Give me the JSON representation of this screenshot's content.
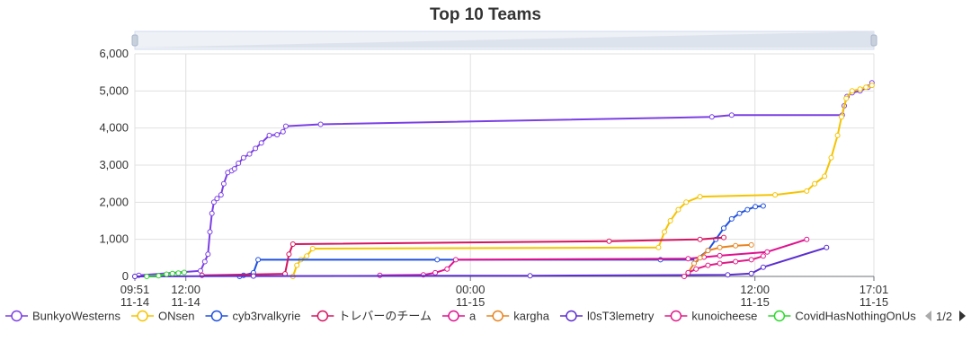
{
  "chart_data": {
    "type": "line",
    "title": "Top 10 Teams",
    "xlabel": "",
    "ylabel": "",
    "ylim": [
      0,
      6000
    ],
    "y_ticks": [
      0,
      1000,
      2000,
      3000,
      4000,
      5000,
      6000
    ],
    "y_tick_labels": [
      "0",
      "1,000",
      "2,000",
      "3,000",
      "4,000",
      "5,000",
      "6,000"
    ],
    "xlim": [
      0,
      1870
    ],
    "x_tick_labels": [
      {
        "x": 0,
        "line1": "09:51",
        "line2": "11-14"
      },
      {
        "x": 129,
        "line1": "12:00",
        "line2": "11-14"
      },
      {
        "x": 849,
        "line1": "00:00",
        "line2": "11-15"
      },
      {
        "x": 1569,
        "line1": "12:00",
        "line2": "11-15"
      },
      {
        "x": 1870,
        "line1": "17:01",
        "line2": "11-15"
      }
    ],
    "x_tick_unit": "minutes since 09:51 11-14",
    "grid": true,
    "legend_position": "bottom",
    "legend_page": "1/2",
    "series": [
      {
        "name": "BunkyoWesterns",
        "color": "#7b3fe4",
        "points": [
          [
            0,
            0
          ],
          [
            10,
            30
          ],
          [
            166,
            150
          ],
          [
            177,
            400
          ],
          [
            185,
            600
          ],
          [
            190,
            1200
          ],
          [
            195,
            1700
          ],
          [
            200,
            2000
          ],
          [
            208,
            2100
          ],
          [
            218,
            2200
          ],
          [
            225,
            2500
          ],
          [
            235,
            2800
          ],
          [
            245,
            2850
          ],
          [
            252,
            2900
          ],
          [
            262,
            3050
          ],
          [
            275,
            3200
          ],
          [
            290,
            3300
          ],
          [
            305,
            3450
          ],
          [
            320,
            3600
          ],
          [
            340,
            3800
          ],
          [
            360,
            3820
          ],
          [
            375,
            3900
          ],
          [
            382,
            4050
          ],
          [
            470,
            4100
          ],
          [
            1460,
            4300
          ],
          [
            1510,
            4350
          ],
          [
            1790,
            4350
          ],
          [
            1795,
            4600
          ],
          [
            1802,
            4850
          ],
          [
            1815,
            4950
          ],
          [
            1835,
            5000
          ],
          [
            1855,
            5100
          ],
          [
            1865,
            5220
          ]
        ]
      },
      {
        "name": "ONsen",
        "color": "#f5c400",
        "points": [
          [
            400,
            0
          ],
          [
            410,
            300
          ],
          [
            420,
            450
          ],
          [
            435,
            550
          ],
          [
            450,
            750
          ],
          [
            1325,
            780
          ],
          [
            1340,
            1200
          ],
          [
            1355,
            1500
          ],
          [
            1375,
            1800
          ],
          [
            1395,
            2000
          ],
          [
            1430,
            2150
          ],
          [
            1620,
            2200
          ],
          [
            1700,
            2300
          ],
          [
            1720,
            2500
          ],
          [
            1745,
            2700
          ],
          [
            1762,
            3200
          ],
          [
            1778,
            3800
          ],
          [
            1788,
            4300
          ],
          [
            1800,
            4800
          ],
          [
            1815,
            5000
          ],
          [
            1835,
            5050
          ],
          [
            1850,
            5100
          ],
          [
            1865,
            5150
          ]
        ]
      },
      {
        "name": "cyb3rvalkyrie",
        "color": "#1e4fe0",
        "points": [
          [
            265,
            0
          ],
          [
            275,
            30
          ],
          [
            300,
            100
          ],
          [
            312,
            450
          ],
          [
            765,
            450
          ],
          [
            1330,
            450
          ],
          [
            1420,
            450
          ],
          [
            1450,
            700
          ],
          [
            1470,
            1000
          ],
          [
            1490,
            1300
          ],
          [
            1510,
            1550
          ],
          [
            1530,
            1700
          ],
          [
            1550,
            1800
          ],
          [
            1570,
            1880
          ],
          [
            1590,
            1900
          ]
        ]
      },
      {
        "name": "トレバーのチーム",
        "color": "#d6145f",
        "points": [
          [
            170,
            30
          ],
          [
            380,
            70
          ],
          [
            390,
            600
          ],
          [
            400,
            870
          ],
          [
            1200,
            950
          ],
          [
            1430,
            1000
          ],
          [
            1490,
            1050
          ]
        ]
      },
      {
        "name": "a",
        "color": "#e0118f",
        "points": [
          [
            620,
            30
          ],
          [
            730,
            40
          ],
          [
            760,
            100
          ],
          [
            790,
            200
          ],
          [
            812,
            450
          ],
          [
            1400,
            480
          ],
          [
            1440,
            520
          ],
          [
            1480,
            560
          ],
          [
            1600,
            660
          ],
          [
            1700,
            1000
          ]
        ]
      },
      {
        "name": "kargha",
        "color": "#e8831e",
        "points": [
          [
            1400,
            100
          ],
          [
            1415,
            350
          ],
          [
            1430,
            500
          ],
          [
            1450,
            700
          ],
          [
            1480,
            780
          ],
          [
            1520,
            830
          ],
          [
            1560,
            850
          ]
        ]
      },
      {
        "name": "l0sT3lemetry",
        "color": "#5b2ed0",
        "points": [
          [
            0,
            0
          ],
          [
            300,
            10
          ],
          [
            1000,
            20
          ],
          [
            1500,
            40
          ],
          [
            1560,
            80
          ],
          [
            1590,
            250
          ],
          [
            1750,
            780
          ]
        ]
      },
      {
        "name": "kunoicheese",
        "color": "#e01a88",
        "points": [
          [
            1390,
            0
          ],
          [
            1400,
            100
          ],
          [
            1420,
            200
          ],
          [
            1450,
            300
          ],
          [
            1480,
            350
          ],
          [
            1520,
            400
          ],
          [
            1560,
            450
          ],
          [
            1590,
            550
          ]
        ]
      },
      {
        "name": "CovidHasNothingOnUs",
        "color": "#2bd92b",
        "points": [
          [
            30,
            0
          ],
          [
            60,
            20
          ],
          [
            80,
            60
          ],
          [
            95,
            80
          ],
          [
            110,
            90
          ],
          [
            125,
            110
          ]
        ]
      }
    ]
  }
}
